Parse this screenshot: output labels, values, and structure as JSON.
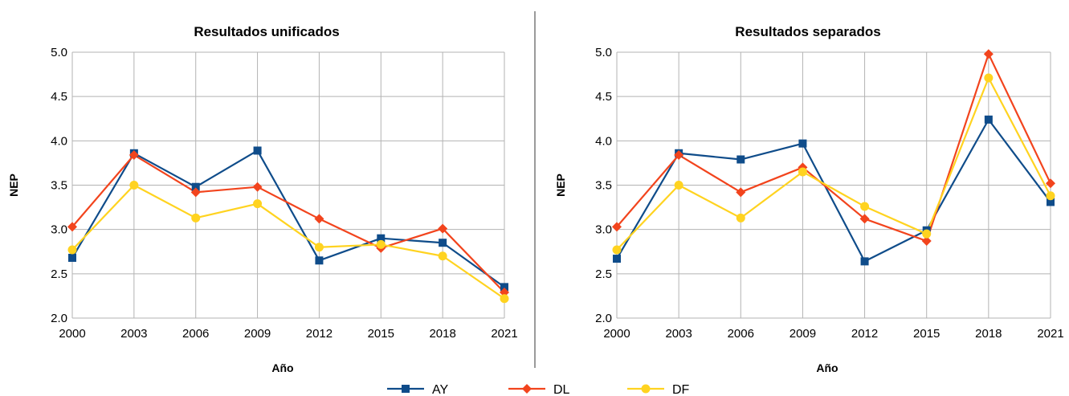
{
  "chart_data": [
    {
      "type": "line",
      "title": "Resultados unificados",
      "xlabel": "Año",
      "ylabel": "NEP",
      "x": [
        "2000",
        "2003",
        "2006",
        "2009",
        "2012",
        "2015",
        "2018",
        "2021"
      ],
      "yticks": [
        "2.0",
        "2.5",
        "3.0",
        "3.5",
        "4.0",
        "4.5",
        "5.0"
      ],
      "ylim": [
        2.0,
        5.0
      ],
      "grid": true,
      "series": [
        {
          "name": "AY",
          "color": "#0f4c8a",
          "marker": "square",
          "values": [
            2.68,
            3.86,
            3.48,
            3.89,
            2.65,
            2.9,
            2.85,
            2.35
          ]
        },
        {
          "name": "DL",
          "color": "#f2441d",
          "marker": "diamond",
          "values": [
            3.03,
            3.84,
            3.42,
            3.48,
            3.12,
            2.79,
            3.01,
            2.29
          ]
        },
        {
          "name": "DF",
          "color": "#ffd320",
          "marker": "circle",
          "values": [
            2.77,
            3.5,
            3.13,
            3.29,
            2.8,
            2.83,
            2.7,
            2.22
          ]
        }
      ]
    },
    {
      "type": "line",
      "title": "Resultados separados",
      "xlabel": "Año",
      "ylabel": "NEP",
      "x": [
        "2000",
        "2003",
        "2006",
        "2009",
        "2012",
        "2015",
        "2018",
        "2021"
      ],
      "yticks": [
        "2.0",
        "2.5",
        "3.0",
        "3.5",
        "4.0",
        "4.5",
        "5.0"
      ],
      "ylim": [
        2.0,
        5.0
      ],
      "grid": true,
      "series": [
        {
          "name": "AY",
          "color": "#0f4c8a",
          "marker": "square",
          "values": [
            2.67,
            3.86,
            3.79,
            3.97,
            2.64,
            2.99,
            4.24,
            3.31
          ]
        },
        {
          "name": "DL",
          "color": "#f2441d",
          "marker": "diamond",
          "values": [
            3.03,
            3.84,
            3.42,
            3.7,
            3.12,
            2.87,
            4.98,
            3.52
          ]
        },
        {
          "name": "DF",
          "color": "#ffd320",
          "marker": "circle",
          "values": [
            2.77,
            3.5,
            3.13,
            3.65,
            3.26,
            2.95,
            4.71,
            3.38
          ]
        }
      ]
    }
  ],
  "legend": {
    "placement": "bottom-center",
    "items": [
      {
        "name": "AY",
        "color": "#0f4c8a",
        "marker": "square"
      },
      {
        "name": "DL",
        "color": "#f2441d",
        "marker": "diamond"
      },
      {
        "name": "DF",
        "color": "#ffd320",
        "marker": "circle"
      }
    ]
  },
  "divider_color": "#9a9a9a"
}
